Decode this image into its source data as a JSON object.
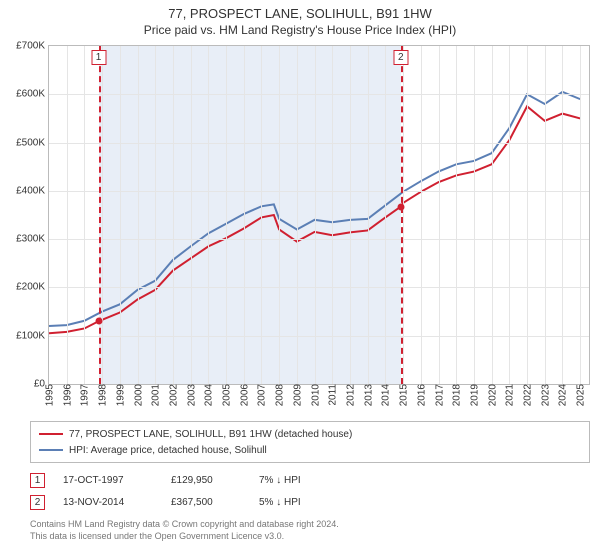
{
  "title": {
    "main": "77, PROSPECT LANE, SOLIHULL, B91 1HW",
    "sub": "Price paid vs. HM Land Registry's House Price Index (HPI)"
  },
  "chart": {
    "type": "line",
    "background_color": "#ffffff",
    "grid_color": "#e5e5e5",
    "border_color": "#bbbbbb",
    "x": {
      "min": 1995,
      "max": 2025.5,
      "ticks": [
        1995,
        1996,
        1997,
        1998,
        1999,
        2000,
        2001,
        2002,
        2003,
        2004,
        2005,
        2006,
        2007,
        2008,
        2009,
        2010,
        2011,
        2012,
        2013,
        2014,
        2015,
        2016,
        2017,
        2018,
        2019,
        2020,
        2021,
        2022,
        2023,
        2024,
        2025
      ]
    },
    "y": {
      "min": 0,
      "max": 700000,
      "ticks": [
        0,
        100000,
        200000,
        300000,
        400000,
        500000,
        600000,
        700000
      ],
      "tick_labels": [
        "£0",
        "£100K",
        "£200K",
        "£300K",
        "£400K",
        "£500K",
        "£600K",
        "£700K"
      ]
    },
    "plotband": {
      "from": 1997.8,
      "to": 2014.87,
      "color": "#e8eef7"
    },
    "plotlines": [
      {
        "x": 1997.8,
        "label": "1",
        "color": "#d02030"
      },
      {
        "x": 2014.87,
        "label": "2",
        "color": "#d02030"
      }
    ],
    "series": [
      {
        "name": "77, PROSPECT LANE, SOLIHULL, B91 1HW (detached house)",
        "color": "#d02030",
        "line_width": 2,
        "x": [
          1995,
          1996,
          1997,
          1997.8,
          1998,
          1999,
          2000,
          2001,
          2002,
          2003,
          2004,
          2005,
          2006,
          2007,
          2007.7,
          2008,
          2009,
          2010,
          2011,
          2012,
          2013,
          2014,
          2014.87,
          2015,
          2016,
          2017,
          2018,
          2019,
          2020,
          2021,
          2022,
          2023,
          2024,
          2025
        ],
        "y": [
          105000,
          108000,
          115000,
          129950,
          133000,
          148000,
          175000,
          195000,
          235000,
          260000,
          285000,
          302000,
          322000,
          345000,
          350000,
          320000,
          295000,
          315000,
          308000,
          314000,
          318000,
          345000,
          367500,
          375000,
          398000,
          418000,
          432000,
          440000,
          455000,
          505000,
          575000,
          545000,
          560000,
          550000
        ]
      },
      {
        "name": "HPI: Average price, detached house, Solihull",
        "color": "#5b7fb5",
        "line_width": 2,
        "x": [
          1995,
          1996,
          1997,
          1998,
          1999,
          2000,
          2001,
          2002,
          2003,
          2004,
          2005,
          2006,
          2007,
          2007.7,
          2008,
          2009,
          2010,
          2011,
          2012,
          2013,
          2014,
          2015,
          2016,
          2017,
          2018,
          2019,
          2020,
          2021,
          2022,
          2023,
          2024,
          2025
        ],
        "y": [
          120000,
          122000,
          131000,
          150000,
          165000,
          195000,
          214000,
          257000,
          285000,
          312000,
          332000,
          352000,
          368000,
          372000,
          342000,
          320000,
          340000,
          335000,
          340000,
          342000,
          370000,
          398000,
          420000,
          440000,
          455000,
          462000,
          478000,
          530000,
          600000,
          580000,
          605000,
          590000
        ]
      }
    ],
    "markers": [
      {
        "x": 1997.8,
        "y": 129950,
        "color": "#d02030"
      },
      {
        "x": 2014.87,
        "y": 367500,
        "color": "#d02030"
      }
    ],
    "tick_fontsize": 10
  },
  "legend": {
    "items": [
      {
        "color": "#d02030",
        "label": "77, PROSPECT LANE, SOLIHULL, B91 1HW (detached house)"
      },
      {
        "color": "#5b7fb5",
        "label": "HPI: Average price, detached house, Solihull"
      }
    ]
  },
  "sales": [
    {
      "badge": "1",
      "date": "17-OCT-1997",
      "price": "£129,950",
      "delta": "7% ↓ HPI"
    },
    {
      "badge": "2",
      "date": "13-NOV-2014",
      "price": "£367,500",
      "delta": "5% ↓ HPI"
    }
  ],
  "footnote": {
    "line1": "Contains HM Land Registry data © Crown copyright and database right 2024.",
    "line2": "This data is licensed under the Open Government Licence v3.0."
  }
}
